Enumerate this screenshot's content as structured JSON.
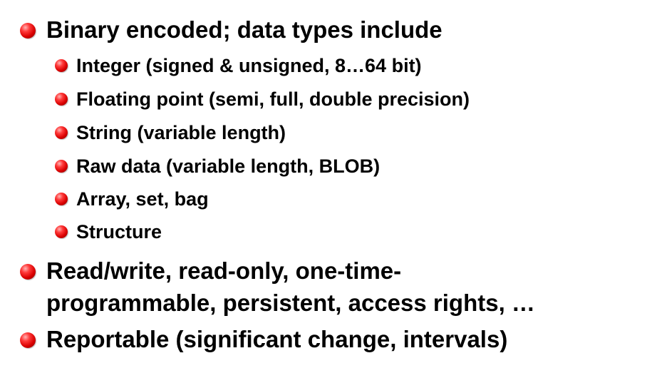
{
  "slide": {
    "bullets": [
      {
        "text": "Binary encoded; data types include",
        "sub": [
          "Integer (signed & unsigned, 8…64 bit)",
          "Floating point (semi, full, double precision)",
          "String (variable length)",
          "Raw data (variable length, BLOB)",
          "Array, set, bag",
          "Structure"
        ]
      },
      {
        "lines": [
          "Read/write, read-only, one-time-",
          "programmable, persistent, access rights, …"
        ]
      },
      {
        "text": "Reportable (significant change, intervals)"
      }
    ],
    "colors": {
      "bullet": "#d90000",
      "text": "#000000",
      "background": "#ffffff"
    }
  }
}
